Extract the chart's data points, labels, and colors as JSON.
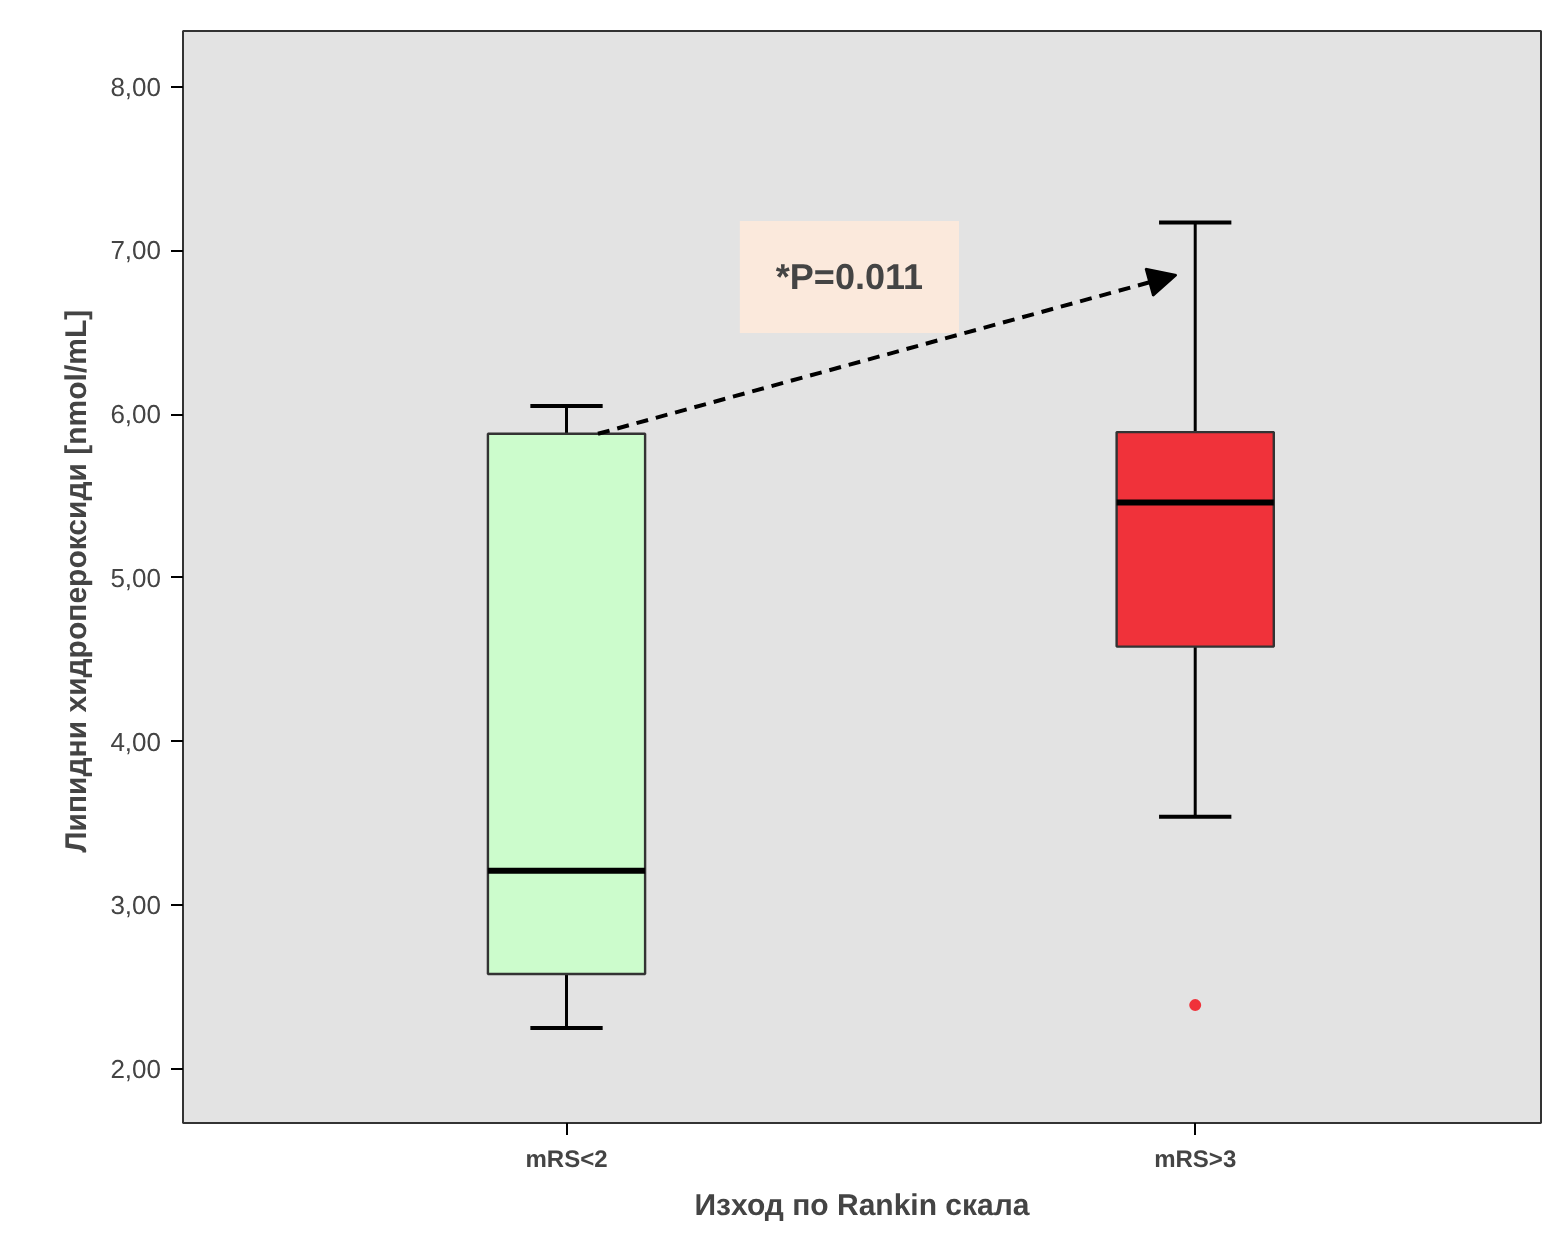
{
  "chart_data": {
    "type": "box",
    "xlabel": "Изход по Rankin скала",
    "ylabel": "Липидни хидропероксиди  [nmol/mL]",
    "categories": [
      "mRS<2",
      "mRS>3"
    ],
    "colors": [
      "#ccfccc",
      "#f0323a"
    ],
    "boxes": [
      {
        "low": 2.25,
        "q1": 2.58,
        "median": 3.21,
        "q3": 5.88,
        "high": 6.05
      },
      {
        "low": 3.54,
        "q1": 4.58,
        "median": 5.46,
        "q3": 5.89,
        "high": 7.17,
        "outliers": [
          2.39
        ]
      }
    ],
    "ylim": [
      1.67,
      8.34
    ],
    "yticks": [
      {
        "value": 2,
        "label": "2,00"
      },
      {
        "value": 3,
        "label": "3,00"
      },
      {
        "value": 4,
        "label": "4,00"
      },
      {
        "value": 5,
        "label": "5,00"
      },
      {
        "value": 6,
        "label": "6,00"
      },
      {
        "value": 7,
        "label": "7,00"
      },
      {
        "value": 8,
        "label": "8,00"
      }
    ],
    "annotations": [
      "*P=0.011"
    ],
    "grid": false
  }
}
